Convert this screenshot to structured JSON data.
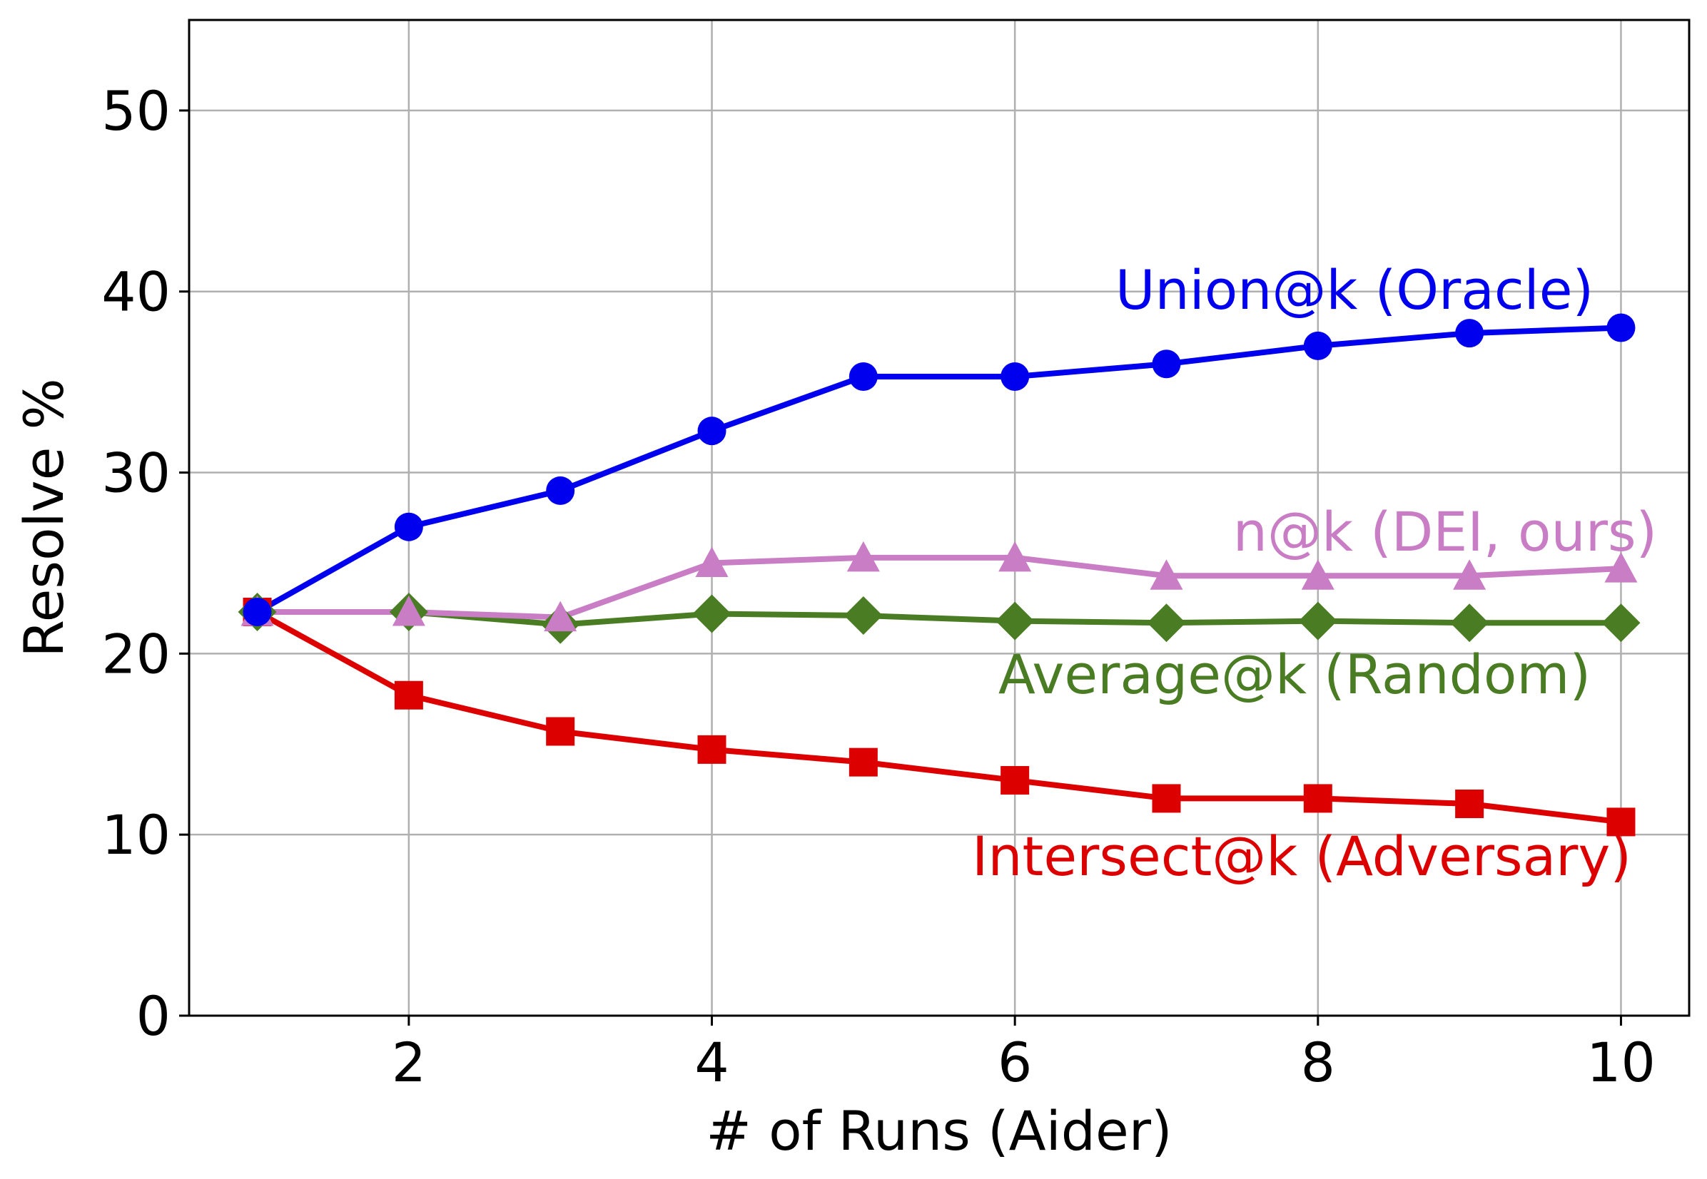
{
  "chart_data": {
    "type": "line",
    "xlabel": "# of Runs (Aider)",
    "ylabel": "Resolve %",
    "xlim": [
      0.55,
      10.45
    ],
    "ylim": [
      0,
      55
    ],
    "xticks": [
      2,
      4,
      6,
      8,
      10
    ],
    "yticks": [
      0,
      10,
      20,
      30,
      40,
      50
    ],
    "grid": true,
    "x": [
      1,
      2,
      3,
      4,
      5,
      6,
      7,
      8,
      9,
      10
    ],
    "series": [
      {
        "name": "Union@k (Oracle)",
        "color": "#0000ee",
        "marker": "circle",
        "values": [
          22.3,
          27.0,
          29.0,
          32.3,
          35.3,
          35.3,
          36.0,
          37.0,
          37.7,
          38.0
        ]
      },
      {
        "name": "n@k (DEI, ours)",
        "color": "#c87dc5",
        "marker": "triangle",
        "values": [
          22.3,
          22.3,
          22.0,
          25.0,
          25.3,
          25.3,
          24.3,
          24.3,
          24.3,
          24.7
        ]
      },
      {
        "name": "Average@k (Random)",
        "color": "#4a7c23",
        "marker": "diamond",
        "values": [
          22.3,
          22.3,
          21.6,
          22.2,
          22.1,
          21.8,
          21.7,
          21.8,
          21.7,
          21.7
        ]
      },
      {
        "name": "Intersect@k (Adversary)",
        "color": "#dd0000",
        "marker": "square",
        "values": [
          22.3,
          17.7,
          15.7,
          14.7,
          14.0,
          13.0,
          12.0,
          12.0,
          11.7,
          10.7
        ]
      }
    ]
  }
}
